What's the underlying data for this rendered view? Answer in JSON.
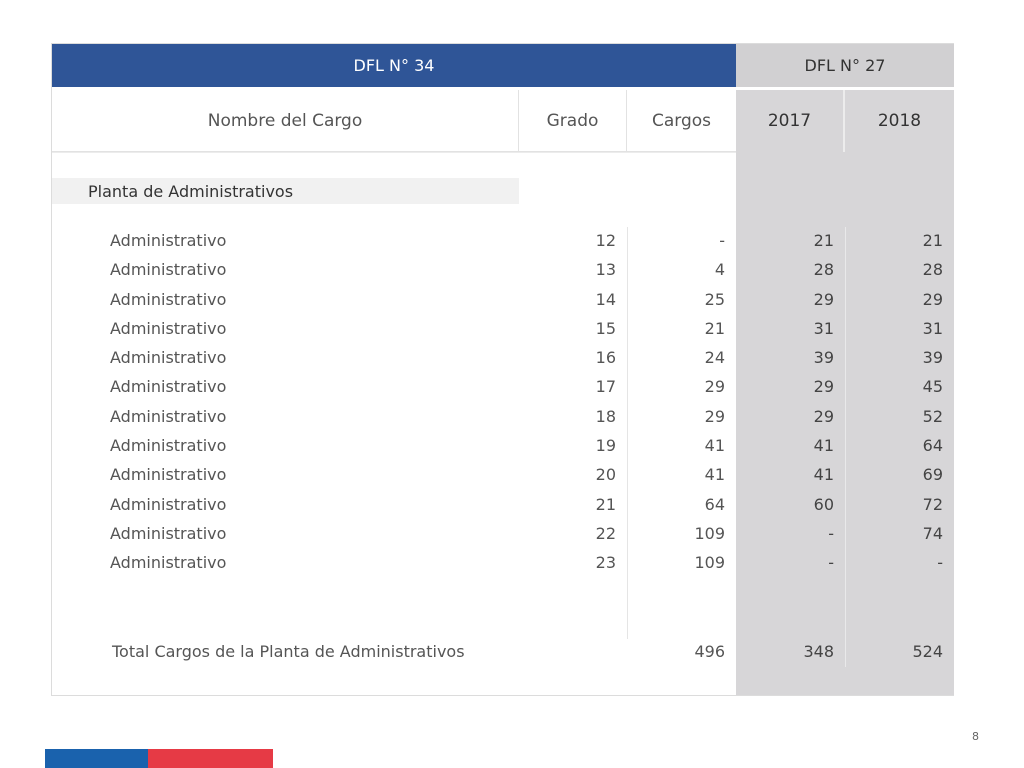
{
  "header": {
    "dfl34": "DFL N° 34",
    "dfl27": "DFL N° 27"
  },
  "columns": {
    "name": "Nombre del Cargo",
    "grado": "Grado",
    "cargos": "Cargos",
    "y2017": "2017",
    "y2018": "2018"
  },
  "section_title": "Planta de Administrativos",
  "rows": [
    {
      "name": "Administrativo",
      "grado": "12",
      "cargos": "-",
      "y2017": "21",
      "y2018": "21"
    },
    {
      "name": "Administrativo",
      "grado": "13",
      "cargos": "4",
      "y2017": "28",
      "y2018": "28"
    },
    {
      "name": "Administrativo",
      "grado": "14",
      "cargos": "25",
      "y2017": "29",
      "y2018": "29"
    },
    {
      "name": "Administrativo",
      "grado": "15",
      "cargos": "21",
      "y2017": "31",
      "y2018": "31"
    },
    {
      "name": "Administrativo",
      "grado": "16",
      "cargos": "24",
      "y2017": "39",
      "y2018": "39"
    },
    {
      "name": "Administrativo",
      "grado": "17",
      "cargos": "29",
      "y2017": "29",
      "y2018": "45"
    },
    {
      "name": "Administrativo",
      "grado": "18",
      "cargos": "29",
      "y2017": "29",
      "y2018": "52"
    },
    {
      "name": "Administrativo",
      "grado": "19",
      "cargos": "41",
      "y2017": "41",
      "y2018": "64"
    },
    {
      "name": "Administrativo",
      "grado": "20",
      "cargos": "41",
      "y2017": "41",
      "y2018": "69"
    },
    {
      "name": "Administrativo",
      "grado": "21",
      "cargos": "64",
      "y2017": "60",
      "y2018": "72"
    },
    {
      "name": "Administrativo",
      "grado": "22",
      "cargos": "109",
      "y2017": "-",
      "y2018": "74"
    },
    {
      "name": "Administrativo",
      "grado": "23",
      "cargos": "109",
      "y2017": "-",
      "y2018": "-"
    }
  ],
  "total": {
    "label": "Total Cargos de la Planta de Administrativos",
    "cargos": "496",
    "y2017": "348",
    "y2018": "524"
  },
  "page_number": "8",
  "colors": {
    "header_blue": "#2f5597",
    "gray_band": "#d7d6d8",
    "bar_blue": "#1a62ad",
    "bar_red": "#e63a45"
  }
}
